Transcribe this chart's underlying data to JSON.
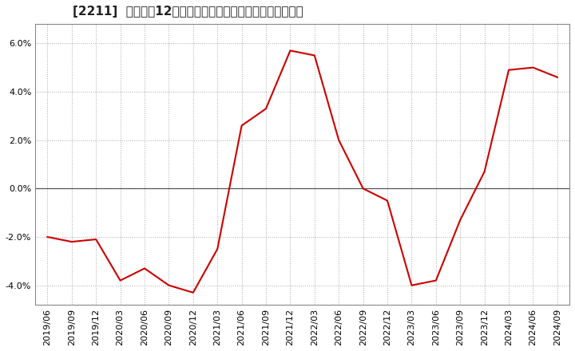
{
  "title": "[2211]  売上高の12か月移動合計の対前年同期増減率の推移",
  "line_color": "#cc0000",
  "background_color": "#ffffff",
  "grid_color": "#aaaaaa",
  "zero_line_color": "#555555",
  "border_color": "#888888",
  "ylim": [
    -0.048,
    0.068
  ],
  "yticks": [
    -0.04,
    -0.02,
    0.0,
    0.02,
    0.04,
    0.06
  ],
  "x_labels": [
    "2019/06",
    "2019/09",
    "2019/12",
    "2020/03",
    "2020/06",
    "2020/09",
    "2020/12",
    "2021/03",
    "2021/06",
    "2021/09",
    "2021/12",
    "2022/03",
    "2022/06",
    "2022/09",
    "2022/12",
    "2023/03",
    "2023/06",
    "2023/09",
    "2023/12",
    "2024/03",
    "2024/06",
    "2024/09"
  ],
  "values": [
    -0.02,
    -0.022,
    -0.021,
    -0.038,
    -0.033,
    -0.04,
    -0.043,
    -0.025,
    0.026,
    0.033,
    0.057,
    0.055,
    0.02,
    0.0,
    -0.005,
    -0.04,
    -0.038,
    -0.013,
    0.007,
    0.049,
    0.05,
    0.046
  ],
  "title_fontsize": 11,
  "tick_fontsize": 8
}
